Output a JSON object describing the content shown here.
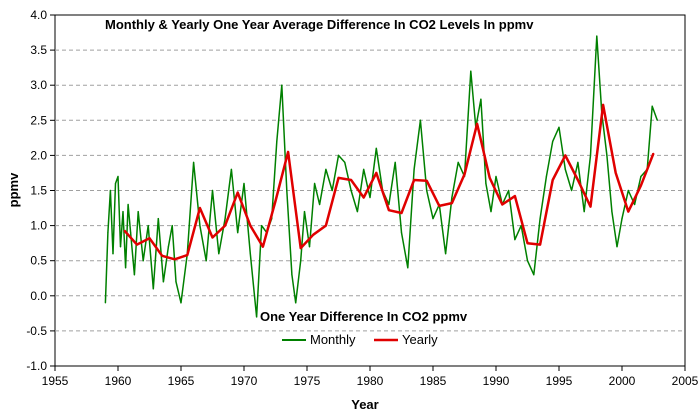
{
  "chart_data": {
    "type": "line",
    "title": "Monthly & Yearly One Year Average Difference In CO2 Levels In ppmv",
    "subtitle": "One Year Difference In CO2 ppmv",
    "xlabel": "Year",
    "ylabel": "ppmv",
    "xlim": [
      1955,
      2005
    ],
    "ylim": [
      -1.0,
      4.0
    ],
    "x_ticks": [
      "1955",
      "1960",
      "1965",
      "1970",
      "1975",
      "1980",
      "1985",
      "1990",
      "1995",
      "2000",
      "2005"
    ],
    "y_ticks": [
      "-1.0",
      "-0.5",
      "0.0",
      "0.5",
      "1.0",
      "1.5",
      "2.0",
      "2.5",
      "3.0",
      "3.5",
      "4.0"
    ],
    "grid": "horizontal dashed",
    "legend_position": "bottom-center",
    "series": [
      {
        "name": "Monthly",
        "color": "#008000",
        "style": "monthly",
        "x": [
          1959.0,
          1959.2,
          1959.4,
          1959.6,
          1959.8,
          1960.0,
          1960.2,
          1960.4,
          1960.6,
          1960.8,
          1961.0,
          1961.3,
          1961.6,
          1962.0,
          1962.4,
          1962.8,
          1963.2,
          1963.6,
          1964.0,
          1964.3,
          1964.6,
          1965.0,
          1965.5,
          1966.0,
          1966.5,
          1967.0,
          1967.5,
          1968.0,
          1968.5,
          1969.0,
          1969.5,
          1970.0,
          1970.5,
          1971.0,
          1971.4,
          1971.8,
          1972.2,
          1972.6,
          1973.0,
          1973.4,
          1973.8,
          1974.1,
          1974.5,
          1974.8,
          1975.2,
          1975.6,
          1976.0,
          1976.5,
          1977.0,
          1977.5,
          1978.0,
          1978.5,
          1979.0,
          1979.5,
          1980.0,
          1980.5,
          1981.0,
          1981.5,
          1982.0,
          1982.5,
          1983.0,
          1983.5,
          1984.0,
          1984.5,
          1985.0,
          1985.5,
          1986.0,
          1986.5,
          1987.0,
          1987.5,
          1988.0,
          1988.4,
          1988.8,
          1989.2,
          1989.6,
          1990.0,
          1990.5,
          1991.0,
          1991.5,
          1992.0,
          1992.5,
          1993.0,
          1993.5,
          1994.0,
          1994.5,
          1995.0,
          1995.5,
          1996.0,
          1996.5,
          1997.0,
          1997.5,
          1998.0,
          1998.4,
          1998.8,
          1999.2,
          1999.6,
          2000.0,
          2000.5,
          2001.0,
          2001.5,
          2002.0,
          2002.4,
          2002.8
        ],
        "values": [
          -0.1,
          0.9,
          1.5,
          0.6,
          1.6,
          1.7,
          0.7,
          1.2,
          0.4,
          1.3,
          0.9,
          0.3,
          1.2,
          0.5,
          1.0,
          0.1,
          1.1,
          0.2,
          0.7,
          1.0,
          0.2,
          -0.1,
          0.6,
          1.9,
          1.0,
          0.5,
          1.5,
          0.6,
          1.1,
          1.8,
          0.9,
          1.6,
          0.6,
          -0.3,
          1.0,
          0.9,
          1.1,
          2.2,
          3.0,
          1.5,
          0.3,
          -0.1,
          0.5,
          1.2,
          0.7,
          1.6,
          1.3,
          1.8,
          1.5,
          2.0,
          1.9,
          1.5,
          1.2,
          1.8,
          1.4,
          2.1,
          1.5,
          1.3,
          1.9,
          0.9,
          0.4,
          1.8,
          2.5,
          1.5,
          1.1,
          1.3,
          0.6,
          1.4,
          1.9,
          1.7,
          3.2,
          2.4,
          2.8,
          1.6,
          1.2,
          1.7,
          1.3,
          1.5,
          0.8,
          1.0,
          0.5,
          0.3,
          1.1,
          1.7,
          2.2,
          2.4,
          1.8,
          1.5,
          1.9,
          1.2,
          2.0,
          3.7,
          2.6,
          2.0,
          1.2,
          0.7,
          1.1,
          1.5,
          1.3,
          1.7,
          1.8,
          2.7,
          2.5
        ]
      },
      {
        "name": "Yearly",
        "color": "#e00000",
        "style": "yearly",
        "x": [
          1960.5,
          1961.5,
          1962.5,
          1963.5,
          1964.5,
          1965.5,
          1966.5,
          1967.5,
          1968.5,
          1969.5,
          1970.5,
          1971.5,
          1972.5,
          1973.5,
          1974.5,
          1975.5,
          1976.5,
          1977.5,
          1978.5,
          1979.5,
          1980.5,
          1981.5,
          1982.5,
          1983.5,
          1984.5,
          1985.5,
          1986.5,
          1987.5,
          1988.5,
          1989.5,
          1990.5,
          1991.5,
          1992.5,
          1993.5,
          1994.5,
          1995.5,
          1996.5,
          1997.5,
          1998.5,
          1999.5,
          2000.5,
          2001.5,
          2002.5
        ],
        "values": [
          0.93,
          0.73,
          0.82,
          0.57,
          0.52,
          0.58,
          1.25,
          0.83,
          1.0,
          1.47,
          1.0,
          0.7,
          1.35,
          2.05,
          0.68,
          0.87,
          1.0,
          1.68,
          1.65,
          1.4,
          1.75,
          1.22,
          1.18,
          1.65,
          1.64,
          1.28,
          1.32,
          1.73,
          2.45,
          1.68,
          1.3,
          1.42,
          0.75,
          0.73,
          1.65,
          2.0,
          1.65,
          1.27,
          2.72,
          1.75,
          1.2,
          1.57,
          2.03
        ]
      }
    ]
  }
}
